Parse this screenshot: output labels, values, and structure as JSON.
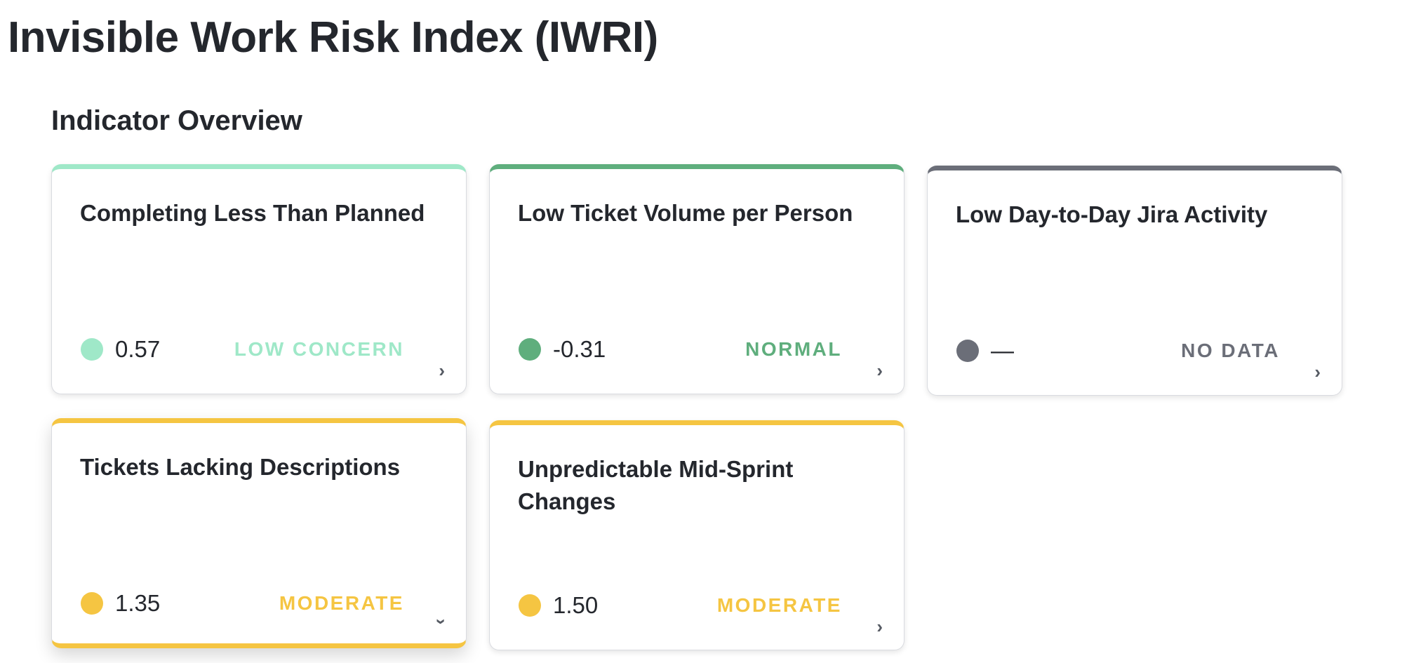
{
  "page_title": "Invisible Work Risk Index (IWRI)",
  "section_title": "Indicator Overview",
  "colors": {
    "low_concern": "#9fe8c8",
    "normal": "#5fae7d",
    "no_data": "#6b6e78",
    "moderate": "#f5c542"
  },
  "cards": [
    {
      "title": "Completing Less Than Planned",
      "score": "0.57",
      "level": "LOW CONCERN",
      "accent_color": "#9fe8c8",
      "expanded": false,
      "chevron_icon": "chevron-right-icon",
      "chevron_glyph": "›"
    },
    {
      "title": "Low Ticket Volume per Person",
      "score": "-0.31",
      "level": "NORMAL",
      "accent_color": "#5fae7d",
      "expanded": false,
      "chevron_icon": "chevron-right-icon",
      "chevron_glyph": "›"
    },
    {
      "title": "Low Day-to-Day Jira Activity",
      "score": "—",
      "level": "NO DATA",
      "accent_color": "#6b6e78",
      "expanded": false,
      "chevron_icon": "chevron-right-icon",
      "chevron_glyph": "›"
    },
    {
      "title": "Tickets Lacking Descriptions",
      "score": "1.35",
      "level": "MODERATE",
      "accent_color": "#f5c542",
      "expanded": true,
      "chevron_icon": "chevron-down-icon",
      "chevron_glyph": "›"
    },
    {
      "title": "Unpredictable Mid-Sprint Changes",
      "score": "1.50",
      "level": "MODERATE",
      "accent_color": "#f5c542",
      "expanded": false,
      "chevron_icon": "chevron-right-icon",
      "chevron_glyph": "›"
    }
  ]
}
